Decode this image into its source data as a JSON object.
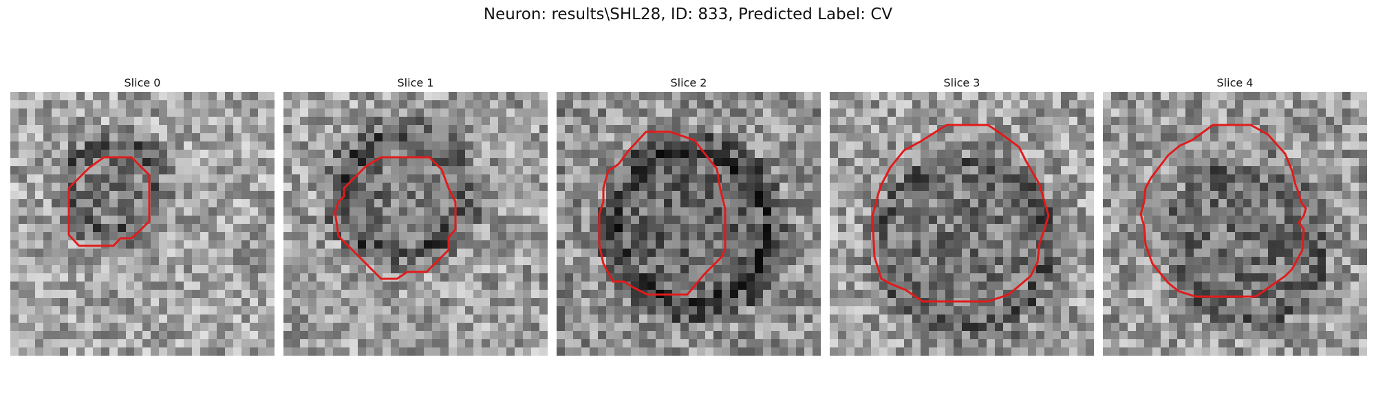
{
  "figure": {
    "title": "Neuron: results\\SHL28, ID: 833, Predicted Label: CV"
  },
  "panels": [
    {
      "title": "Slice 0"
    },
    {
      "title": "Slice 1"
    },
    {
      "title": "Slice 2"
    },
    {
      "title": "Slice 3"
    },
    {
      "title": "Slice 4"
    }
  ],
  "colors": {
    "contour": "#e11b1b",
    "background": "#ffffff"
  }
}
